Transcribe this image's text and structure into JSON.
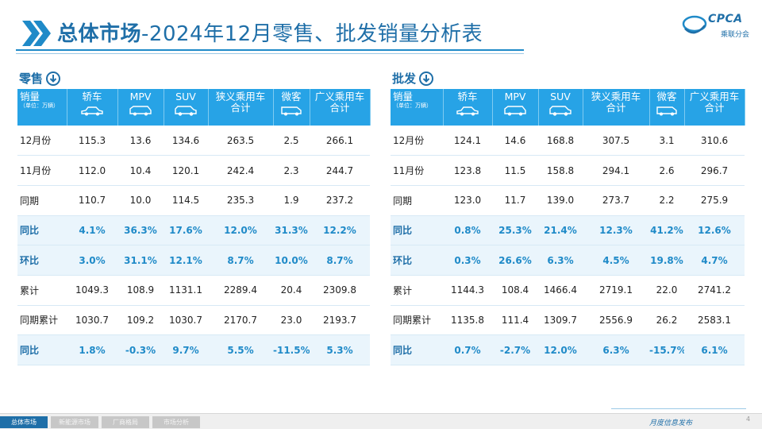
{
  "header": {
    "title_part1": "总体市场",
    "title_part2": "-2024年12月零售、批发销量分析表",
    "logo_text": "CPCA",
    "logo_subtext": "乘联分会"
  },
  "colors": {
    "accent": "#1f6fa8",
    "header_blue": "#27a3e6",
    "pct_row_bg": "#eaf5fc"
  },
  "columns": [
    {
      "label": "轿车",
      "icon": "sedan-icon"
    },
    {
      "label": "MPV",
      "icon": "mpv-icon"
    },
    {
      "label": "SUV",
      "icon": "suv-icon"
    },
    {
      "label": "狭义乘用车合计",
      "icon": ""
    },
    {
      "label": "微客",
      "icon": "minivan-icon"
    },
    {
      "label": "广义乘用车合计",
      "icon": ""
    }
  ],
  "header_label": {
    "main": "销量",
    "sub": "（单位：万辆）"
  },
  "retail": {
    "title": "零售",
    "rows": [
      {
        "label": "12月份",
        "values": [
          "115.3",
          "13.6",
          "134.6",
          "263.5",
          "2.5",
          "266.1"
        ],
        "pct": false
      },
      {
        "label": "11月份",
        "values": [
          "112.0",
          "10.4",
          "120.1",
          "242.4",
          "2.3",
          "244.7"
        ],
        "pct": false
      },
      {
        "label": "同期",
        "values": [
          "110.7",
          "10.0",
          "114.5",
          "235.3",
          "1.9",
          "237.2"
        ],
        "pct": false
      },
      {
        "label": "同比",
        "values": [
          "4.1%",
          "36.3%",
          "17.6%",
          "12.0%",
          "31.3%",
          "12.2%"
        ],
        "pct": true
      },
      {
        "label": "环比",
        "values": [
          "3.0%",
          "31.1%",
          "12.1%",
          "8.7%",
          "10.0%",
          "8.7%"
        ],
        "pct": true
      },
      {
        "label": "累计",
        "values": [
          "1049.3",
          "108.9",
          "1131.1",
          "2289.4",
          "20.4",
          "2309.8"
        ],
        "pct": false
      },
      {
        "label": "同期累计",
        "values": [
          "1030.7",
          "109.2",
          "1030.7",
          "2170.7",
          "23.0",
          "2193.7"
        ],
        "pct": false
      },
      {
        "label": "同比",
        "values": [
          "1.8%",
          "-0.3%",
          "9.7%",
          "5.5%",
          "-11.5%",
          "5.3%"
        ],
        "pct": true
      }
    ]
  },
  "wholesale": {
    "title": "批发",
    "rows": [
      {
        "label": "12月份",
        "values": [
          "124.1",
          "14.6",
          "168.8",
          "307.5",
          "3.1",
          "310.6"
        ],
        "pct": false
      },
      {
        "label": "11月份",
        "values": [
          "123.8",
          "11.5",
          "158.8",
          "294.1",
          "2.6",
          "296.7"
        ],
        "pct": false
      },
      {
        "label": "同期",
        "values": [
          "123.0",
          "11.7",
          "139.0",
          "273.7",
          "2.2",
          "275.9"
        ],
        "pct": false
      },
      {
        "label": "同比",
        "values": [
          "0.8%",
          "25.3%",
          "21.4%",
          "12.3%",
          "41.2%",
          "12.6%"
        ],
        "pct": true
      },
      {
        "label": "环比",
        "values": [
          "0.3%",
          "26.6%",
          "6.3%",
          "4.5%",
          "19.8%",
          "4.7%"
        ],
        "pct": true
      },
      {
        "label": "累计",
        "values": [
          "1144.3",
          "108.4",
          "1466.4",
          "2719.1",
          "22.0",
          "2741.2"
        ],
        "pct": false
      },
      {
        "label": "同期累计",
        "values": [
          "1135.8",
          "111.4",
          "1309.7",
          "2556.9",
          "26.2",
          "2583.1"
        ],
        "pct": false
      },
      {
        "label": "同比",
        "values": [
          "0.7%",
          "-2.7%",
          "12.0%",
          "6.3%",
          "-15.7%",
          "6.1%"
        ],
        "pct": true
      }
    ]
  },
  "footer": {
    "tabs": [
      "总体市场",
      "新能源市场",
      "厂商格局",
      "市场分析"
    ],
    "brand": "月度信息发布",
    "page": "4"
  }
}
